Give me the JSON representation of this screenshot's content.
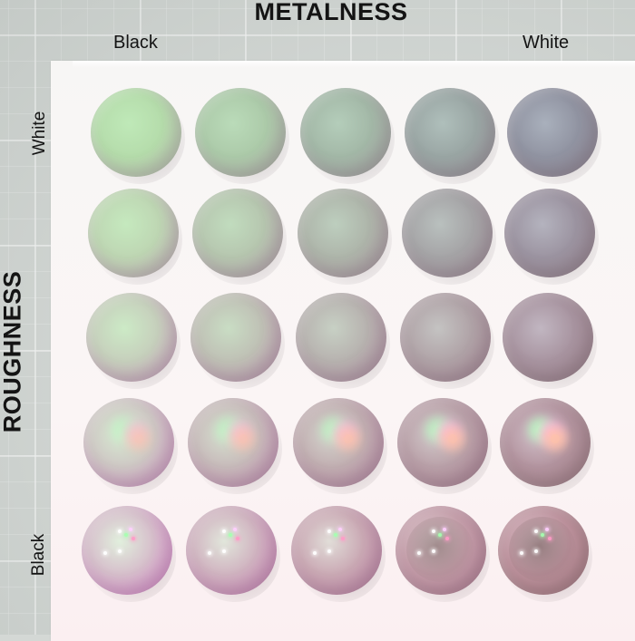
{
  "axes": {
    "top": {
      "title": "METALNESS",
      "start_label": "Black",
      "end_label": "White"
    },
    "left": {
      "title": "ROUGHNESS",
      "start_label": "White",
      "end_label": "Black"
    }
  },
  "grid": {
    "rows": 5,
    "columns": 5
  },
  "colors": {
    "background": "#d4d8d5",
    "panel": "#f8f4f4",
    "green_tint": "#b7e2ae",
    "pink_tint": "#e3a1d6",
    "metal_gray": "#8f8f98",
    "metal_rose": "#b48890"
  }
}
